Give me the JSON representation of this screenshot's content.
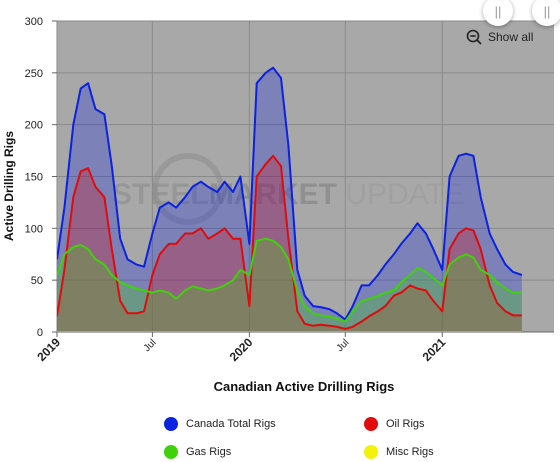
{
  "chart_data": {
    "type": "area",
    "title": "",
    "xlabel": "Canadian Active Drilling Rigs",
    "ylabel": "Active Drilling Rigs",
    "ylim": [
      0,
      300
    ],
    "yticks": [
      0,
      50,
      100,
      150,
      200,
      250,
      300
    ],
    "xlim": [
      "2019-01-01",
      "2021-08-01"
    ],
    "xticks": [
      {
        "label": "2019",
        "x": "2019-01-01",
        "bold": true
      },
      {
        "label": "Jul",
        "x": "2019-07-01",
        "bold": false
      },
      {
        "label": "2020",
        "x": "2020-01-01",
        "bold": true
      },
      {
        "label": "Jul",
        "x": "2020-07-01",
        "bold": false
      },
      {
        "label": "2021",
        "x": "2021-01-01",
        "bold": true
      }
    ],
    "grid": true,
    "watermark": {
      "part1": "STEEL",
      "part2": "MARKET",
      "part3": " UPDATE"
    },
    "series": [
      {
        "name": "Canada Total Rigs",
        "color": "#0b22e0",
        "points": [
          [
            "2019-01-01",
            70
          ],
          [
            "2019-01-15",
            120
          ],
          [
            "2019-02-01",
            200
          ],
          [
            "2019-02-15",
            235
          ],
          [
            "2019-03-01",
            240
          ],
          [
            "2019-03-15",
            215
          ],
          [
            "2019-04-01",
            210
          ],
          [
            "2019-04-15",
            160
          ],
          [
            "2019-05-01",
            90
          ],
          [
            "2019-05-15",
            70
          ],
          [
            "2019-06-01",
            65
          ],
          [
            "2019-06-15",
            63
          ],
          [
            "2019-07-01",
            95
          ],
          [
            "2019-07-15",
            120
          ],
          [
            "2019-08-01",
            125
          ],
          [
            "2019-08-15",
            120
          ],
          [
            "2019-09-01",
            130
          ],
          [
            "2019-09-15",
            140
          ],
          [
            "2019-10-01",
            145
          ],
          [
            "2019-10-15",
            140
          ],
          [
            "2019-11-01",
            135
          ],
          [
            "2019-11-15",
            145
          ],
          [
            "2019-12-01",
            135
          ],
          [
            "2019-12-15",
            150
          ],
          [
            "2020-01-01",
            85
          ],
          [
            "2020-01-15",
            240
          ],
          [
            "2020-02-01",
            250
          ],
          [
            "2020-02-15",
            255
          ],
          [
            "2020-03-01",
            245
          ],
          [
            "2020-03-15",
            180
          ],
          [
            "2020-04-01",
            60
          ],
          [
            "2020-04-15",
            35
          ],
          [
            "2020-05-01",
            25
          ],
          [
            "2020-05-15",
            24
          ],
          [
            "2020-06-01",
            22
          ],
          [
            "2020-06-15",
            18
          ],
          [
            "2020-07-01",
            12
          ],
          [
            "2020-07-15",
            25
          ],
          [
            "2020-08-01",
            45
          ],
          [
            "2020-08-15",
            45
          ],
          [
            "2020-09-01",
            55
          ],
          [
            "2020-09-15",
            65
          ],
          [
            "2020-10-01",
            75
          ],
          [
            "2020-10-15",
            85
          ],
          [
            "2020-11-01",
            95
          ],
          [
            "2020-11-15",
            105
          ],
          [
            "2020-12-01",
            95
          ],
          [
            "2020-12-15",
            80
          ],
          [
            "2021-01-01",
            60
          ],
          [
            "2021-01-15",
            150
          ],
          [
            "2021-02-01",
            170
          ],
          [
            "2021-02-15",
            172
          ],
          [
            "2021-03-01",
            170
          ],
          [
            "2021-03-15",
            130
          ],
          [
            "2021-04-01",
            95
          ],
          [
            "2021-04-15",
            80
          ],
          [
            "2021-05-01",
            65
          ],
          [
            "2021-05-15",
            58
          ],
          [
            "2021-06-01",
            55
          ]
        ]
      },
      {
        "name": "Oil Rigs",
        "color": "#e00b0b",
        "points": [
          [
            "2019-01-01",
            15
          ],
          [
            "2019-01-15",
            60
          ],
          [
            "2019-02-01",
            130
          ],
          [
            "2019-02-15",
            155
          ],
          [
            "2019-03-01",
            158
          ],
          [
            "2019-03-15",
            140
          ],
          [
            "2019-04-01",
            130
          ],
          [
            "2019-04-15",
            80
          ],
          [
            "2019-05-01",
            30
          ],
          [
            "2019-05-15",
            18
          ],
          [
            "2019-06-01",
            18
          ],
          [
            "2019-06-15",
            20
          ],
          [
            "2019-07-01",
            55
          ],
          [
            "2019-07-15",
            75
          ],
          [
            "2019-08-01",
            85
          ],
          [
            "2019-08-15",
            85
          ],
          [
            "2019-09-01",
            95
          ],
          [
            "2019-09-15",
            95
          ],
          [
            "2019-10-01",
            100
          ],
          [
            "2019-10-15",
            90
          ],
          [
            "2019-11-01",
            95
          ],
          [
            "2019-11-15",
            100
          ],
          [
            "2019-12-01",
            90
          ],
          [
            "2019-12-15",
            90
          ],
          [
            "2020-01-01",
            25
          ],
          [
            "2020-01-15",
            150
          ],
          [
            "2020-02-01",
            162
          ],
          [
            "2020-02-15",
            170
          ],
          [
            "2020-03-01",
            160
          ],
          [
            "2020-03-15",
            90
          ],
          [
            "2020-04-01",
            20
          ],
          [
            "2020-04-15",
            8
          ],
          [
            "2020-05-01",
            6
          ],
          [
            "2020-05-15",
            7
          ],
          [
            "2020-06-01",
            6
          ],
          [
            "2020-06-15",
            5
          ],
          [
            "2020-07-01",
            3
          ],
          [
            "2020-07-15",
            5
          ],
          [
            "2020-08-01",
            10
          ],
          [
            "2020-08-15",
            15
          ],
          [
            "2020-09-01",
            20
          ],
          [
            "2020-09-15",
            25
          ],
          [
            "2020-10-01",
            35
          ],
          [
            "2020-10-15",
            38
          ],
          [
            "2020-11-01",
            45
          ],
          [
            "2020-11-15",
            42
          ],
          [
            "2020-12-01",
            40
          ],
          [
            "2020-12-15",
            30
          ],
          [
            "2021-01-01",
            20
          ],
          [
            "2021-01-15",
            80
          ],
          [
            "2021-02-01",
            95
          ],
          [
            "2021-02-15",
            100
          ],
          [
            "2021-03-01",
            98
          ],
          [
            "2021-03-15",
            80
          ],
          [
            "2021-04-01",
            45
          ],
          [
            "2021-04-15",
            28
          ],
          [
            "2021-05-01",
            20
          ],
          [
            "2021-05-15",
            16
          ],
          [
            "2021-06-01",
            16
          ]
        ]
      },
      {
        "name": "Gas Rigs",
        "color": "#3fd20a",
        "points": [
          [
            "2019-01-01",
            55
          ],
          [
            "2019-01-15",
            75
          ],
          [
            "2019-02-01",
            82
          ],
          [
            "2019-02-15",
            84
          ],
          [
            "2019-03-01",
            80
          ],
          [
            "2019-03-15",
            70
          ],
          [
            "2019-04-01",
            65
          ],
          [
            "2019-04-15",
            55
          ],
          [
            "2019-05-01",
            48
          ],
          [
            "2019-05-15",
            45
          ],
          [
            "2019-06-01",
            42
          ],
          [
            "2019-06-15",
            40
          ],
          [
            "2019-07-01",
            38
          ],
          [
            "2019-07-15",
            40
          ],
          [
            "2019-08-01",
            38
          ],
          [
            "2019-08-15",
            32
          ],
          [
            "2019-09-01",
            40
          ],
          [
            "2019-09-15",
            44
          ],
          [
            "2019-10-01",
            42
          ],
          [
            "2019-10-15",
            40
          ],
          [
            "2019-11-01",
            42
          ],
          [
            "2019-11-15",
            45
          ],
          [
            "2019-12-01",
            50
          ],
          [
            "2019-12-15",
            60
          ],
          [
            "2020-01-01",
            55
          ],
          [
            "2020-01-15",
            88
          ],
          [
            "2020-02-01",
            90
          ],
          [
            "2020-02-15",
            88
          ],
          [
            "2020-03-01",
            82
          ],
          [
            "2020-03-15",
            70
          ],
          [
            "2020-04-01",
            40
          ],
          [
            "2020-04-15",
            25
          ],
          [
            "2020-05-01",
            18
          ],
          [
            "2020-05-15",
            16
          ],
          [
            "2020-06-01",
            15
          ],
          [
            "2020-06-15",
            13
          ],
          [
            "2020-07-01",
            10
          ],
          [
            "2020-07-15",
            20
          ],
          [
            "2020-08-01",
            30
          ],
          [
            "2020-08-15",
            32
          ],
          [
            "2020-09-01",
            35
          ],
          [
            "2020-09-15",
            38
          ],
          [
            "2020-10-01",
            40
          ],
          [
            "2020-10-15",
            48
          ],
          [
            "2020-11-01",
            55
          ],
          [
            "2020-11-15",
            62
          ],
          [
            "2020-12-01",
            58
          ],
          [
            "2020-12-15",
            52
          ],
          [
            "2021-01-01",
            45
          ],
          [
            "2021-01-15",
            65
          ],
          [
            "2021-02-01",
            72
          ],
          [
            "2021-02-15",
            75
          ],
          [
            "2021-03-01",
            72
          ],
          [
            "2021-03-15",
            60
          ],
          [
            "2021-04-01",
            55
          ],
          [
            "2021-04-15",
            48
          ],
          [
            "2021-05-01",
            42
          ],
          [
            "2021-05-15",
            38
          ],
          [
            "2021-06-01",
            38
          ]
        ]
      },
      {
        "name": "Misc Rigs",
        "color": "#f2f20a",
        "points": [
          [
            "2019-01-01",
            0
          ],
          [
            "2021-06-01",
            0
          ]
        ]
      }
    ]
  },
  "controls": {
    "show_all_label": "Show all",
    "handle_glyph": "||"
  },
  "legend": [
    {
      "label": "Canada Total Rigs",
      "color": "#0b22e0"
    },
    {
      "label": "Oil Rigs",
      "color": "#e00b0b"
    },
    {
      "label": "Gas Rigs",
      "color": "#3fd20a"
    },
    {
      "label": "Misc Rigs",
      "color": "#f2f20a"
    }
  ]
}
